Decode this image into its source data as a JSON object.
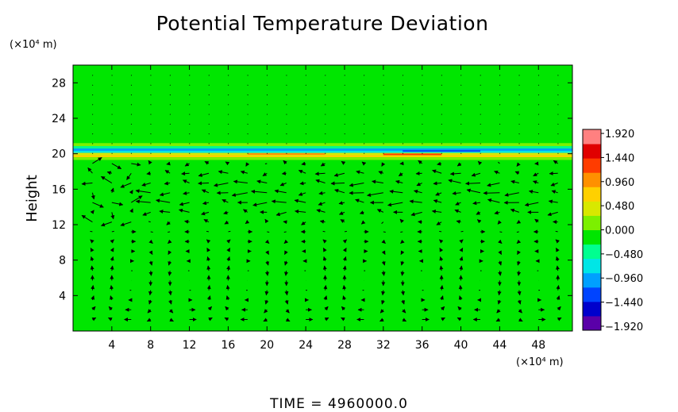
{
  "chart_data": {
    "type": "heatmap",
    "title": "Potential Temperature Deviation",
    "ylabel": "Height",
    "y_unit_label": "(×10⁴ m)",
    "x_unit_label": "(×10⁴ m)",
    "x_ticks": [
      "4",
      "8",
      "12",
      "16",
      "20",
      "24",
      "28",
      "32",
      "36",
      "40",
      "44",
      "48"
    ],
    "y_ticks": [
      "4",
      "8",
      "12",
      "16",
      "20",
      "24",
      "28"
    ],
    "xlim": [
      0,
      51.5
    ],
    "ylim": [
      0,
      30
    ],
    "colorbar": {
      "labels": [
        "1.920",
        "1.440",
        "0.960",
        "0.480",
        "0.000",
        "−0.480",
        "−0.960",
        "−1.440",
        "−1.920"
      ],
      "range": [
        -2.0,
        2.0
      ],
      "colors": [
        "#5a00a8",
        "#0000cc",
        "#0044ff",
        "#00a0ff",
        "#00e6e6",
        "#00ff90",
        "#00e600",
        "#7cf000",
        "#d8e800",
        "#ffd000",
        "#ff9000",
        "#ff3c00",
        "#e00000",
        "#ff8080"
      ]
    },
    "background_value": 0.0,
    "background_color": "#00e600",
    "band": {
      "y_range": [
        19.3,
        21.2
      ],
      "description_values": [
        -1.0,
        0.5,
        1.2
      ]
    },
    "field_note": "wind vectors, strongest westward jet near heights 12-19"
  },
  "footer": {
    "time_label": "TIME  =  4960000.0"
  }
}
